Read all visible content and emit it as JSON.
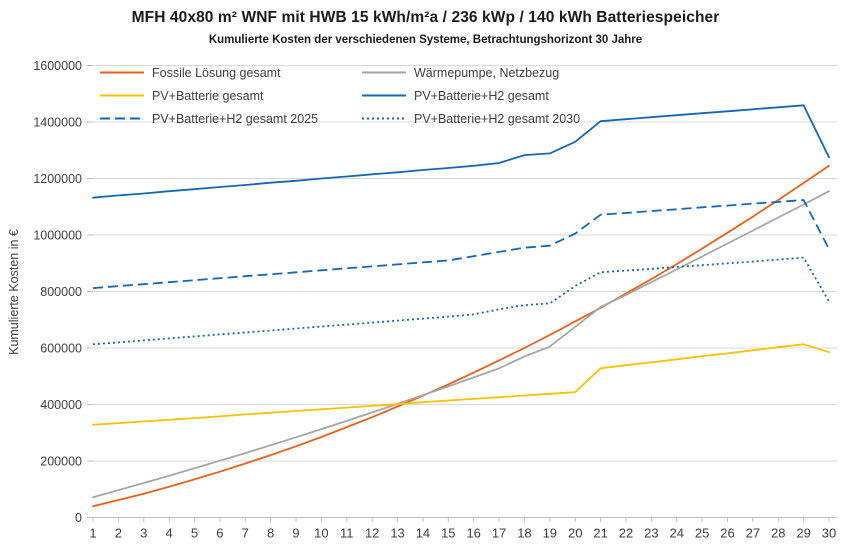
{
  "title": "MFH 40x80 m² WNF mit HWB 15 kWh/m²a / 236 kWp / 140 kWh Batteriespeicher",
  "subtitle": "Kumulierte Kosten der verschiedenen Systeme, Betrachtungshorizont 30 Jahre",
  "colors": {
    "fossile": "#E8611C",
    "waermepumpe": "#A6A6A6",
    "pv_batterie": "#FFC000",
    "blue": "#1467B8",
    "grid": "#D9D9D9",
    "axis": "#BFBFBF",
    "tick_text": "#404040",
    "title_text": "#1A1A1A"
  },
  "legend": {
    "columns": [
      [
        0,
        2,
        4
      ],
      [
        1,
        3,
        5
      ]
    ]
  },
  "chart_data": {
    "type": "line",
    "title": "MFH 40x80 m² WNF mit HWB 15 kWh/m²a / 236 kWp / 140 kWh Batteriespeicher",
    "subtitle": "Kumulierte Kosten der verschiedenen Systeme, Betrachtungshorizont 30 Jahre",
    "xlabel": "",
    "ylabel": "Kumulierte Kosten in €",
    "x": [
      1,
      2,
      3,
      4,
      5,
      6,
      7,
      8,
      9,
      10,
      11,
      12,
      13,
      14,
      15,
      16,
      17,
      18,
      19,
      20,
      21,
      22,
      23,
      24,
      25,
      26,
      27,
      28,
      29,
      30
    ],
    "ylim": [
      0,
      1600000
    ],
    "ytick_step": 200000,
    "grid": true,
    "legend_position": "top-left-inside-two-columns",
    "series": [
      {
        "id": "fossile-loesung-gesamt",
        "name": "Fossile Lösung gesamt",
        "color": "#E8611C",
        "dash": "solid",
        "values": [
          40000,
          62000,
          84000,
          109000,
          135000,
          162000,
          191000,
          221000,
          252000,
          285000,
          320000,
          355000,
          393000,
          431000,
          471000,
          513000,
          556000,
          600000,
          646000,
          694000,
          742000,
          793000,
          844000,
          897000,
          952000,
          1008000,
          1065000,
          1124000,
          1184000,
          1245000
        ]
      },
      {
        "id": "waermepumpe-netzbezug",
        "name": "Wärmepumpe, Netzbezug",
        "color": "#A6A6A6",
        "dash": "solid",
        "values": [
          72000,
          97000,
          122000,
          148000,
          174000,
          201000,
          228000,
          256000,
          284000,
          313000,
          342000,
          372000,
          402000,
          433000,
          464000,
          496000,
          528000,
          570000,
          605000,
          675000,
          745000,
          788000,
          833000,
          878000,
          924000,
          970000,
          1016000,
          1062000,
          1108000,
          1155000
        ]
      },
      {
        "id": "pv-batterie-gesamt",
        "name": "PV+Batterie gesamt",
        "color": "#FFC000",
        "dash": "solid",
        "values": [
          328000,
          334000,
          340000,
          346000,
          352000,
          358000,
          365000,
          371000,
          377000,
          383000,
          389000,
          395000,
          401000,
          408000,
          414000,
          420000,
          426000,
          432000,
          438000,
          444000,
          528000,
          539000,
          549000,
          560000,
          571000,
          581000,
          592000,
          603000,
          613000,
          585000
        ]
      },
      {
        "id": "pv-batterie-h2-gesamt",
        "name": "PV+Batterie+H2 gesamt",
        "color": "#1467B8",
        "dash": "solid",
        "values": [
          1132000,
          1140000,
          1147000,
          1155000,
          1162000,
          1170000,
          1177000,
          1185000,
          1192000,
          1200000,
          1207000,
          1215000,
          1222000,
          1230000,
          1237000,
          1245000,
          1255000,
          1283000,
          1289000,
          1330000,
          1403000,
          1410000,
          1417000,
          1424000,
          1431000,
          1438000,
          1445000,
          1452000,
          1459000,
          1275000
        ]
      },
      {
        "id": "pv-batterie-h2-gesamt-2025",
        "name": "PV+Batterie+H2 gesamt 2025",
        "color": "#1467B8",
        "dash": "dashed",
        "values": [
          812000,
          819000,
          826000,
          833000,
          840000,
          847000,
          854000,
          861000,
          868000,
          875000,
          882000,
          889000,
          896000,
          903000,
          910000,
          925000,
          940000,
          955000,
          962000,
          1005000,
          1072000,
          1078000,
          1085000,
          1091000,
          1098000,
          1104000,
          1111000,
          1117000,
          1124000,
          950000
        ]
      },
      {
        "id": "pv-batterie-h2-gesamt-2030",
        "name": "PV+Batterie+H2 gesamt 2030",
        "color": "#1467B8",
        "dash": "dotted",
        "values": [
          613000,
          620000,
          627000,
          634000,
          641000,
          648000,
          655000,
          662000,
          669000,
          676000,
          683000,
          690000,
          697000,
          704000,
          711000,
          719000,
          737000,
          752000,
          758000,
          820000,
          868000,
          874000,
          880000,
          887000,
          893000,
          900000,
          906000,
          913000,
          920000,
          765000
        ]
      }
    ]
  }
}
